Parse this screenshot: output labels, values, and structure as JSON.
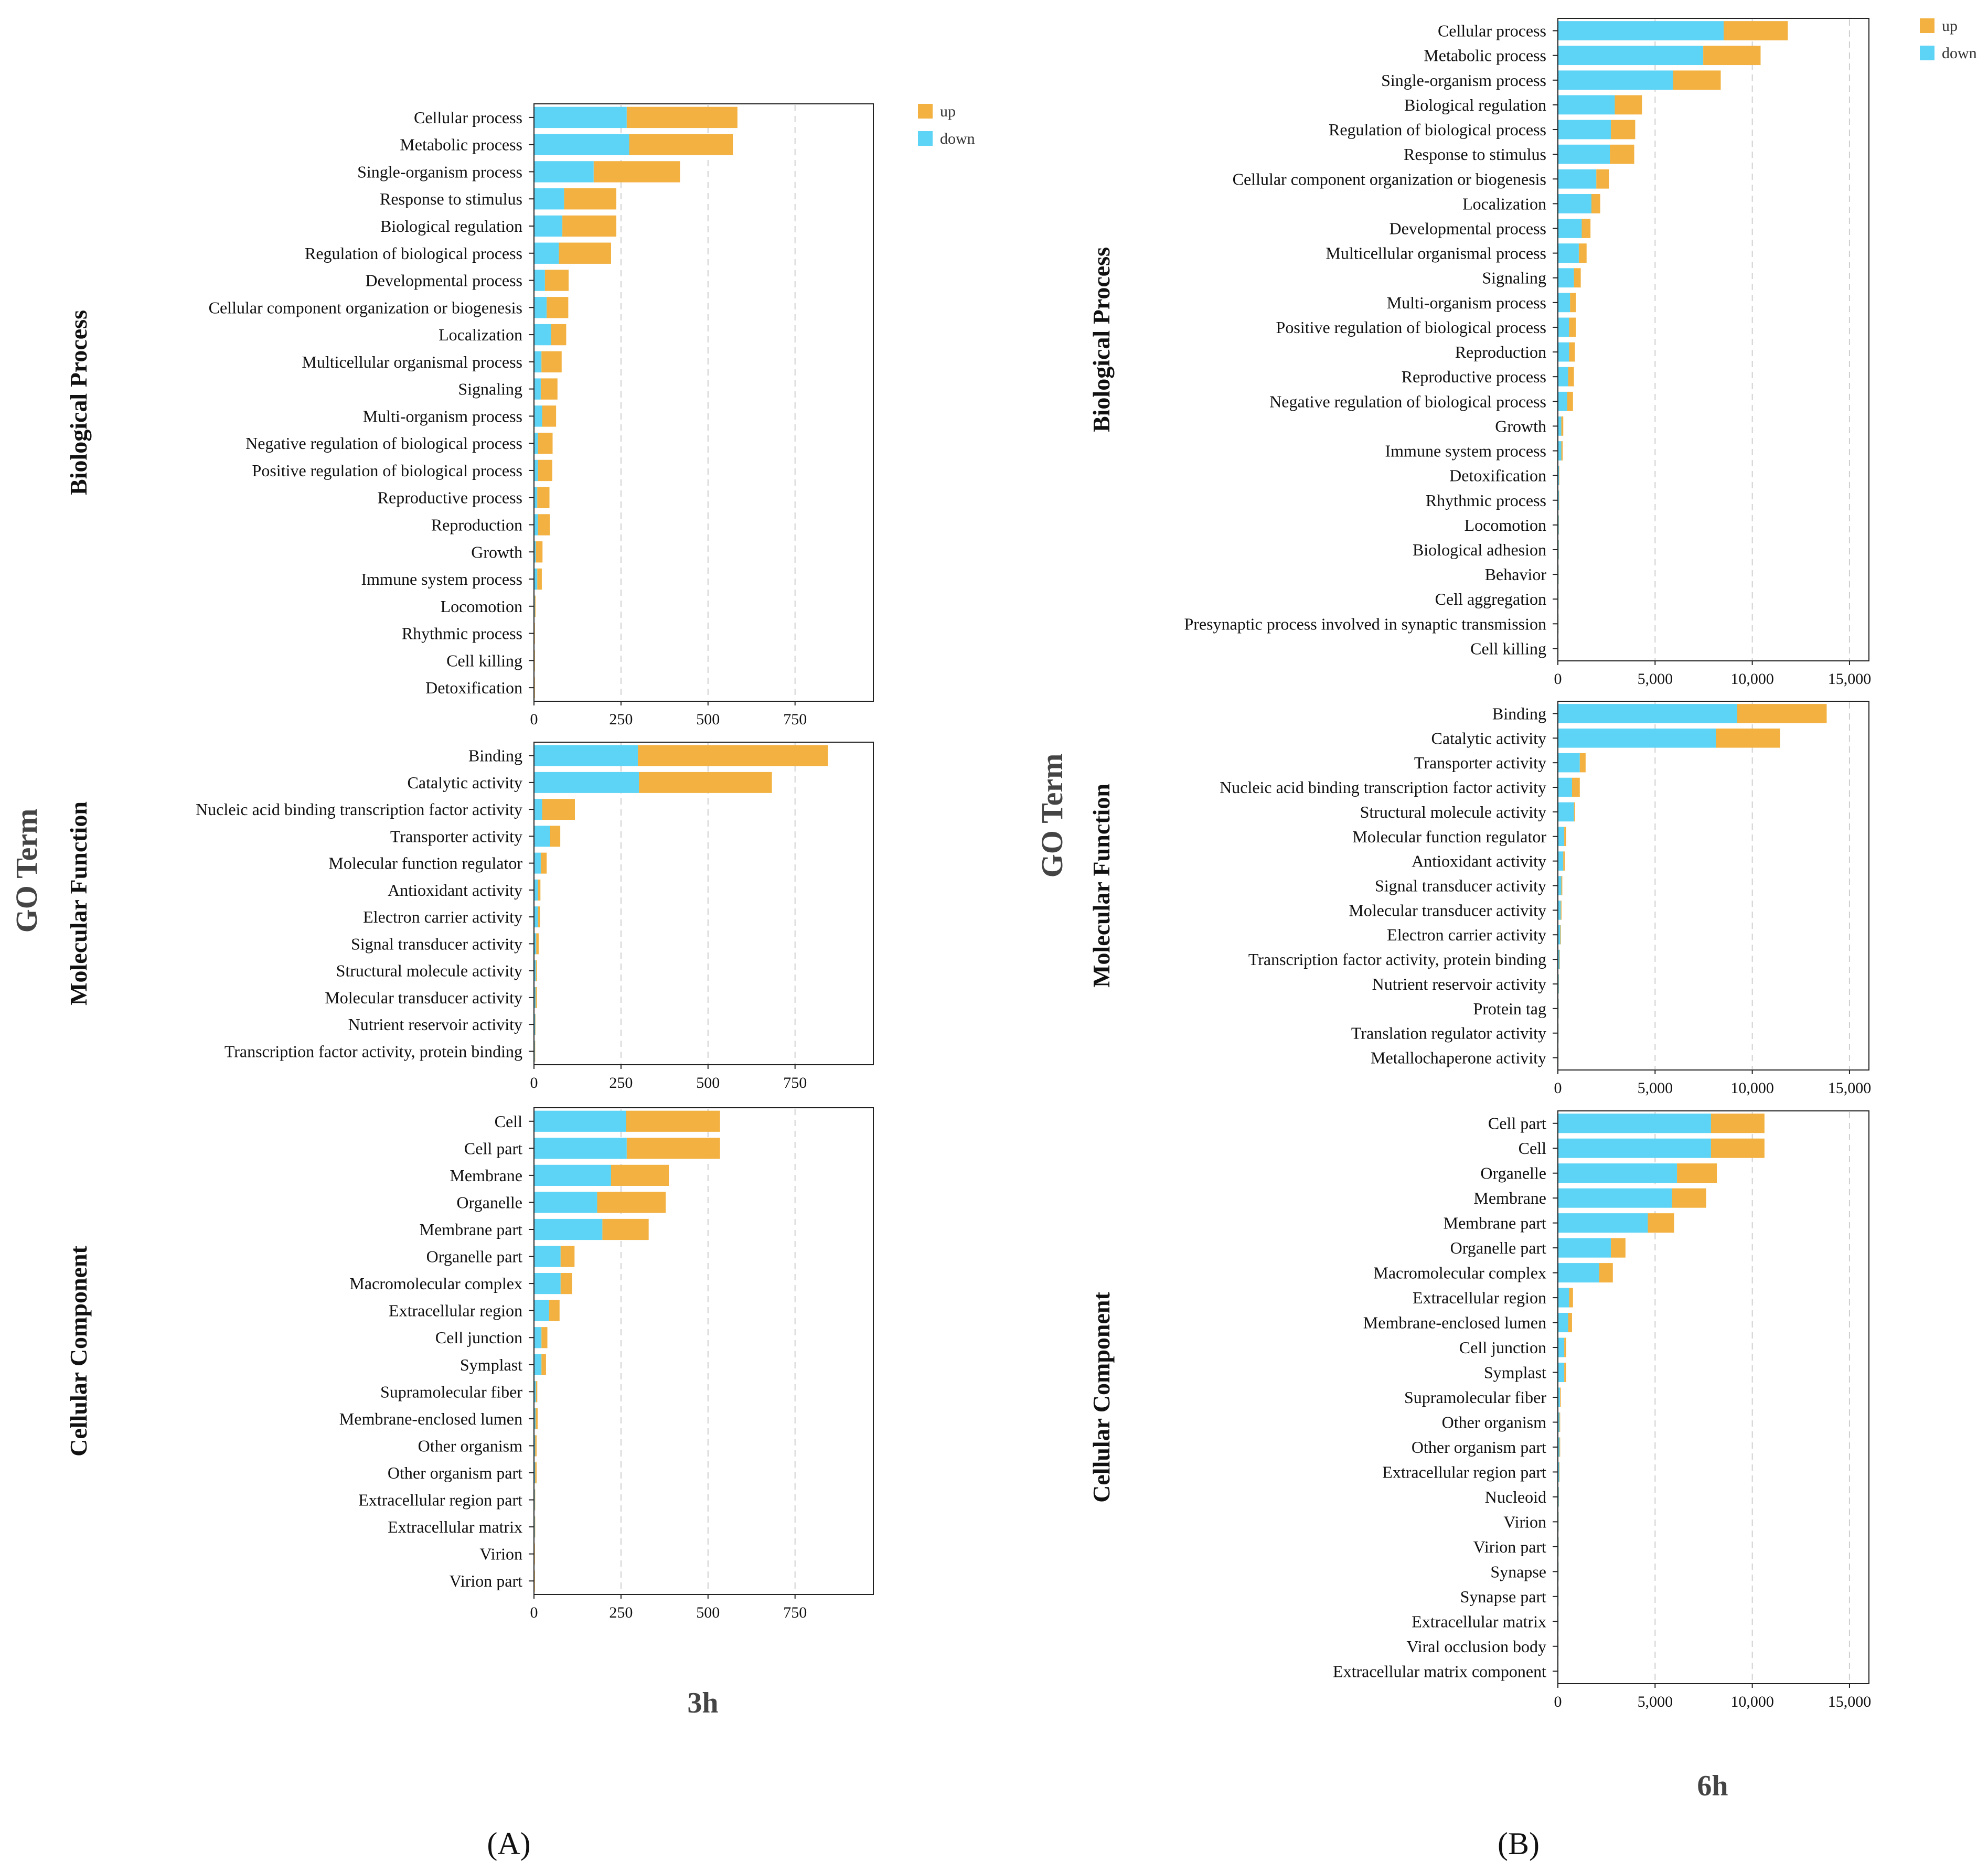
{
  "colors": {
    "up": "#f2b141",
    "down": "#5dd3f5",
    "grid": "#cfcfcf",
    "axis": "#222222"
  },
  "panel_labels": {
    "A": "(A)",
    "B": "(B)"
  },
  "chart_data": [
    {
      "panel": "A",
      "type": "bar",
      "orientation": "horizontal",
      "stacked": true,
      "time_label": "3h",
      "axis_title": "GO Term",
      "legend": [
        "up",
        "down"
      ],
      "sections": [
        {
          "title": "Biological Process",
          "xlim": [
            0,
            975
          ],
          "ticks": [
            0,
            250,
            500,
            750
          ],
          "tick_labels": [
            "0",
            "250",
            "500",
            "750"
          ],
          "categories": [
            "Cellular process",
            "Metabolic process",
            "Single-organism process",
            "Response to stimulus",
            "Biological regulation",
            "Regulation of biological process",
            "Developmental process",
            "Cellular component organization or biogenesis",
            "Localization",
            "Multicellular organismal process",
            "Signaling",
            "Multi-organism process",
            "Negative regulation of biological process",
            "Positive regulation of biological process",
            "Reproductive process",
            "Reproduction",
            "Growth",
            "Immune system process",
            "Locomotion",
            "Rhythmic process",
            "Cell killing",
            "Detoxification"
          ],
          "series": [
            {
              "name": "down",
              "values": [
                265,
                272,
                170,
                85,
                80,
                70,
                30,
                35,
                48,
                20,
                18,
                22,
                10,
                10,
                8,
                10,
                4,
                8,
                1,
                0,
                0,
                0
              ]
            },
            {
              "name": "up",
              "values": [
                318,
                298,
                248,
                150,
                155,
                150,
                68,
                62,
                43,
                58,
                48,
                40,
                42,
                41,
                35,
                34,
                19,
                13,
                2,
                1,
                1,
                1
              ]
            }
          ]
        },
        {
          "title": "Molecular Function",
          "xlim": [
            0,
            975
          ],
          "ticks": [
            0,
            250,
            500,
            750
          ],
          "tick_labels": [
            "0",
            "250",
            "500",
            "750"
          ],
          "categories": [
            "Binding",
            "Catalytic activity",
            "Nucleic acid binding transcription factor activity",
            "Transporter activity",
            "Molecular function regulator",
            "Antioxidant activity",
            "Electron carrier activity",
            "Signal transducer activity",
            "Structural molecule activity",
            "Molecular transducer activity",
            "Nutrient reservoir activity",
            "Transcription factor activity, protein binding"
          ],
          "series": [
            {
              "name": "down",
              "values": [
                297,
                300,
                22,
                45,
                18,
                10,
                10,
                5,
                4,
                3,
                2,
                1
              ]
            },
            {
              "name": "up",
              "values": [
                546,
                382,
                94,
                29,
                17,
                7,
                6,
                7,
                3,
                4,
                1,
                1
              ]
            }
          ]
        },
        {
          "title": "Cellular Component",
          "xlim": [
            0,
            975
          ],
          "ticks": [
            0,
            250,
            500,
            750
          ],
          "tick_labels": [
            "0",
            "250",
            "500",
            "750"
          ],
          "categories": [
            "Cell",
            "Cell part",
            "Membrane",
            "Organelle",
            "Membrane part",
            "Organelle part",
            "Macromolecular complex",
            "Extracellular region",
            "Cell junction",
            "Symplast",
            "Supramolecular fiber",
            "Membrane-enclosed lumen",
            "Other organism",
            "Other organism part",
            "Extracellular region part",
            "Extracellular matrix",
            "Virion",
            "Virion part"
          ],
          "series": [
            {
              "name": "down",
              "values": [
                263,
                265,
                220,
                180,
                195,
                75,
                75,
                42,
                20,
                20,
                4,
                3,
                2,
                2,
                1,
                1,
                0,
                0
              ]
            },
            {
              "name": "up",
              "values": [
                270,
                268,
                166,
                197,
                133,
                40,
                33,
                30,
                17,
                13,
                4,
                6,
                4,
                4,
                1,
                1,
                1,
                1
              ]
            }
          ]
        }
      ]
    },
    {
      "panel": "B",
      "type": "bar",
      "orientation": "horizontal",
      "stacked": true,
      "time_label": "6h",
      "axis_title": "GO Term",
      "legend": [
        "up",
        "down"
      ],
      "sections": [
        {
          "title": "Biological Process",
          "xlim": [
            0,
            16000
          ],
          "ticks": [
            0,
            5000,
            10000,
            15000
          ],
          "tick_labels": [
            "0",
            "5,000",
            "10,000",
            "15,000"
          ],
          "categories": [
            "Cellular process",
            "Metabolic process",
            "Single-organism process",
            "Biological regulation",
            "Regulation of biological process",
            "Response to stimulus",
            "Cellular component organization or biogenesis",
            "Localization",
            "Developmental process",
            "Multicellular organismal process",
            "Signaling",
            "Multi-organism process",
            "Positive regulation of biological process",
            "Reproduction",
            "Reproductive process",
            "Negative regulation of biological process",
            "Growth",
            "Immune system process",
            "Detoxification",
            "Rhythmic process",
            "Locomotion",
            "Biological adhesion",
            "Behavior",
            "Cell aggregation",
            "Presynaptic process involved in synaptic transmission",
            "Cell killing"
          ],
          "series": [
            {
              "name": "down",
              "values": [
                8500,
                7450,
                5900,
                2900,
                2700,
                2650,
                1950,
                1700,
                1200,
                1050,
                800,
                600,
                550,
                550,
                500,
                450,
                150,
                150,
                30,
                25,
                20,
                15,
                10,
                8,
                5,
                3
              ]
            },
            {
              "name": "up",
              "values": [
                3300,
                2950,
                2450,
                1400,
                1250,
                1250,
                650,
                450,
                450,
                400,
                350,
                300,
                350,
                300,
                300,
                300,
                100,
                70,
                20,
                15,
                10,
                8,
                5,
                4,
                3,
                2
              ]
            }
          ]
        },
        {
          "title": "Molecular Function",
          "xlim": [
            0,
            16000
          ],
          "ticks": [
            0,
            5000,
            10000,
            15000
          ],
          "tick_labels": [
            "0",
            "5,000",
            "10,000",
            "15,000"
          ],
          "categories": [
            "Binding",
            "Catalytic activity",
            "Transporter activity",
            "Nucleic acid binding transcription factor activity",
            "Structural molecule activity",
            "Molecular function regulator",
            "Antioxidant activity",
            "Signal transducer activity",
            "Molecular transducer activity",
            "Electron carrier activity",
            "Transcription factor activity, protein binding",
            "Nutrient reservoir activity",
            "Protein tag",
            "Translation regulator activity",
            "Metallochaperone activity"
          ],
          "series": [
            {
              "name": "down",
              "values": [
                9200,
                8100,
                1100,
                700,
                800,
                300,
                250,
                150,
                120,
                100,
                60,
                20,
                10,
                5,
                3
              ]
            },
            {
              "name": "up",
              "values": [
                4600,
                3300,
                300,
                400,
                50,
                100,
                80,
                50,
                40,
                30,
                20,
                10,
                5,
                3,
                2
              ]
            }
          ]
        },
        {
          "title": "Cellular Component",
          "xlim": [
            0,
            16000
          ],
          "ticks": [
            0,
            5000,
            10000,
            15000
          ],
          "tick_labels": [
            "0",
            "5,000",
            "10,000",
            "15,000"
          ],
          "categories": [
            "Cell part",
            "Cell",
            "Organelle",
            "Membrane",
            "Membrane part",
            "Organelle part",
            "Macromolecular complex",
            "Extracellular region",
            "Membrane-enclosed lumen",
            "Cell junction",
            "Symplast",
            "Supramolecular fiber",
            "Other organism",
            "Other organism part",
            "Extracellular region part",
            "Nucleoid",
            "Virion",
            "Virion part",
            "Synapse",
            "Synapse part",
            "Extracellular matrix",
            "Viral occlusion body",
            "Extracellular matrix component"
          ],
          "series": [
            {
              "name": "down",
              "values": [
                7850,
                7850,
                6100,
                5850,
                4600,
                2700,
                2100,
                550,
                500,
                300,
                300,
                80,
                60,
                60,
                40,
                20,
                10,
                10,
                8,
                6,
                5,
                3,
                2
              ]
            },
            {
              "name": "up",
              "values": [
                2750,
                2750,
                2050,
                1750,
                1350,
                750,
                700,
                200,
                200,
                100,
                100,
                40,
                30,
                30,
                20,
                10,
                5,
                5,
                4,
                3,
                2,
                2,
                1
              ]
            }
          ]
        }
      ]
    }
  ]
}
